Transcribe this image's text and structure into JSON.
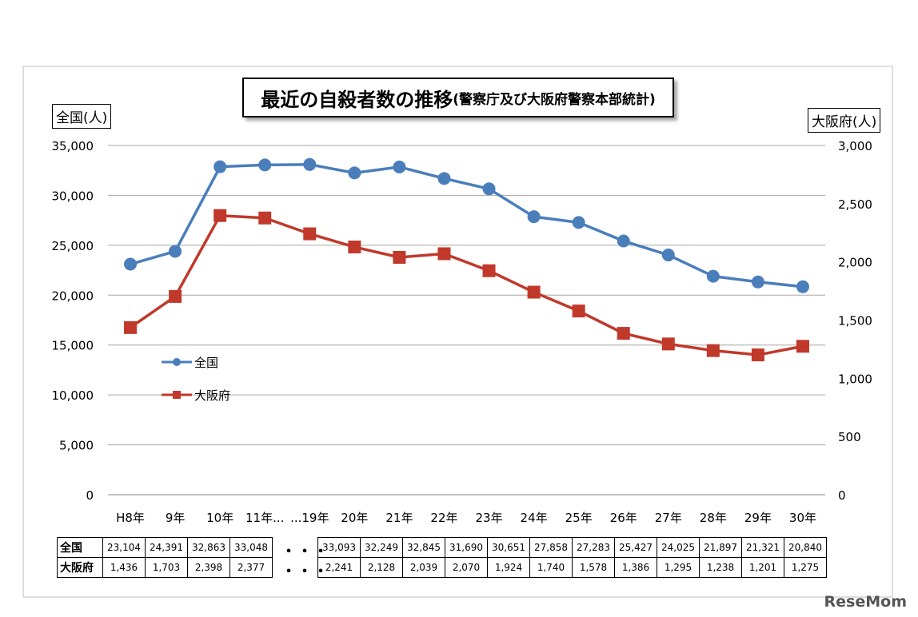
{
  "chart_data": {
    "type": "line",
    "title": "最近の自殺者数の推移",
    "subtitle": "(警察庁及び大阪府警察本部統計)",
    "ylabel_left": "全国(人)",
    "ylabel_right": "大阪府(人)",
    "categories": [
      "H8年",
      "9年",
      "10年",
      "11年...",
      "...19年",
      "20年",
      "21年",
      "22年",
      "23年",
      "24年",
      "25年",
      "26年",
      "27年",
      "28年",
      "29年",
      "30年"
    ],
    "yticks_left": [
      "0",
      "5,000",
      "10,000",
      "15,000",
      "20,000",
      "25,000",
      "30,000",
      "35,000"
    ],
    "yticks_right": [
      "0",
      "500",
      "1,000",
      "1,500",
      "2,000",
      "2,500",
      "3,000"
    ],
    "ylim_left": [
      0,
      35000
    ],
    "ylim_right": [
      0,
      3000
    ],
    "grid": true,
    "legend_position": "left-middle",
    "series": [
      {
        "name": "全国",
        "axis": "left",
        "color": "#4a7ebb",
        "marker": "circle",
        "values": [
          23104,
          24391,
          32863,
          33048,
          33093,
          32249,
          32845,
          31690,
          30651,
          27858,
          27283,
          25427,
          24025,
          21897,
          21321,
          20840
        ]
      },
      {
        "name": "大阪府",
        "axis": "right",
        "color": "#c0392b",
        "marker": "square",
        "values": [
          1436,
          1703,
          2398,
          2377,
          2241,
          2128,
          2039,
          2070,
          1924,
          1740,
          1578,
          1386,
          1295,
          1238,
          1201,
          1275
        ]
      }
    ]
  },
  "table": {
    "gap_marker": "・・・",
    "rows": [
      {
        "label": "全国",
        "left": [
          "23,104",
          "24,391",
          "32,863",
          "33,048"
        ],
        "right": [
          "33,093",
          "32,249",
          "32,845",
          "31,690",
          "30,651",
          "27,858",
          "27,283",
          "25,427",
          "24,025",
          "21,897",
          "21,321",
          "20,840"
        ]
      },
      {
        "label": "大阪府",
        "left": [
          "1,436",
          "1,703",
          "2,398",
          "2,377"
        ],
        "right": [
          "2,241",
          "2,128",
          "2,039",
          "2,070",
          "1,924",
          "1,740",
          "1,578",
          "1,386",
          "1,295",
          "1,238",
          "1,201",
          "1,275"
        ]
      }
    ]
  },
  "watermark": "ReseMom"
}
